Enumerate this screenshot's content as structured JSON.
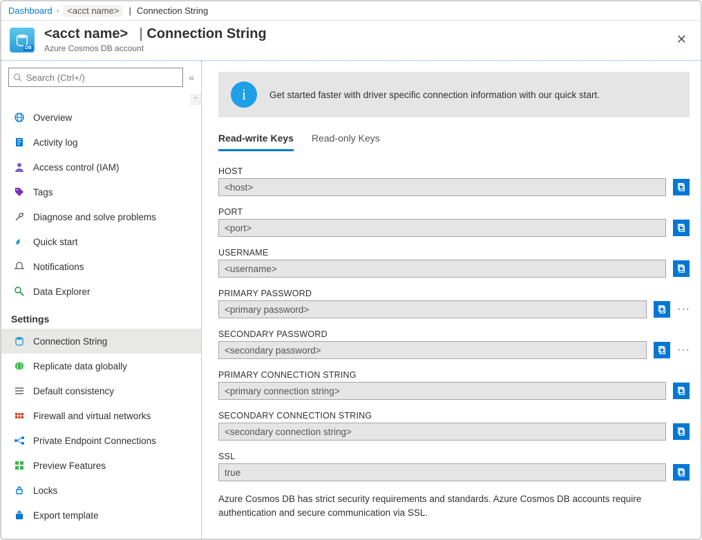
{
  "breadcrumb": {
    "dashboard": "Dashboard",
    "acct": "<acct name>",
    "page": "Connection String"
  },
  "header": {
    "acct": "<acct name>",
    "page": "Connection String",
    "subtitle": "Azure Cosmos DB account"
  },
  "search": {
    "placeholder": "Search (Ctrl+/)"
  },
  "nav": {
    "items": [
      {
        "label": "Overview"
      },
      {
        "label": "Activity log"
      },
      {
        "label": "Access control (IAM)"
      },
      {
        "label": "Tags"
      },
      {
        "label": "Diagnose and solve problems"
      },
      {
        "label": "Quick start"
      },
      {
        "label": "Notifications"
      },
      {
        "label": "Data Explorer"
      }
    ],
    "settings_header": "Settings",
    "settings": [
      {
        "label": "Connection String",
        "active": true
      },
      {
        "label": "Replicate data globally"
      },
      {
        "label": "Default consistency"
      },
      {
        "label": "Firewall and virtual networks"
      },
      {
        "label": "Private Endpoint Connections"
      },
      {
        "label": "Preview Features"
      },
      {
        "label": "Locks"
      },
      {
        "label": "Export template"
      }
    ]
  },
  "banner": {
    "text": "Get started faster with driver specific connection information with our quick start."
  },
  "tabs": {
    "rw": "Read-write Keys",
    "ro": "Read-only Keys"
  },
  "fields": [
    {
      "label": "HOST",
      "value": "<host>",
      "more": false
    },
    {
      "label": "PORT",
      "value": "<port>",
      "more": false
    },
    {
      "label": "USERNAME",
      "value": "<username>",
      "more": false
    },
    {
      "label": "PRIMARY PASSWORD",
      "value": "<primary password>",
      "more": true
    },
    {
      "label": "SECONDARY PASSWORD",
      "value": "<secondary password>",
      "more": true
    },
    {
      "label": "PRIMARY CONNECTION STRING",
      "value": "<primary connection string>",
      "more": false
    },
    {
      "label": "SECONDARY CONNECTION STRING",
      "value": "<secondary connection string>",
      "more": false
    },
    {
      "label": "SSL",
      "value": "true",
      "more": false
    }
  ],
  "footer": "Azure Cosmos DB has strict security requirements and standards. Azure Cosmos DB accounts require authentication and secure communication via SSL.",
  "colors": {
    "accent": "#0078d4",
    "banner_bg": "#e5e5e5",
    "field_bg": "#e5e5e5"
  }
}
